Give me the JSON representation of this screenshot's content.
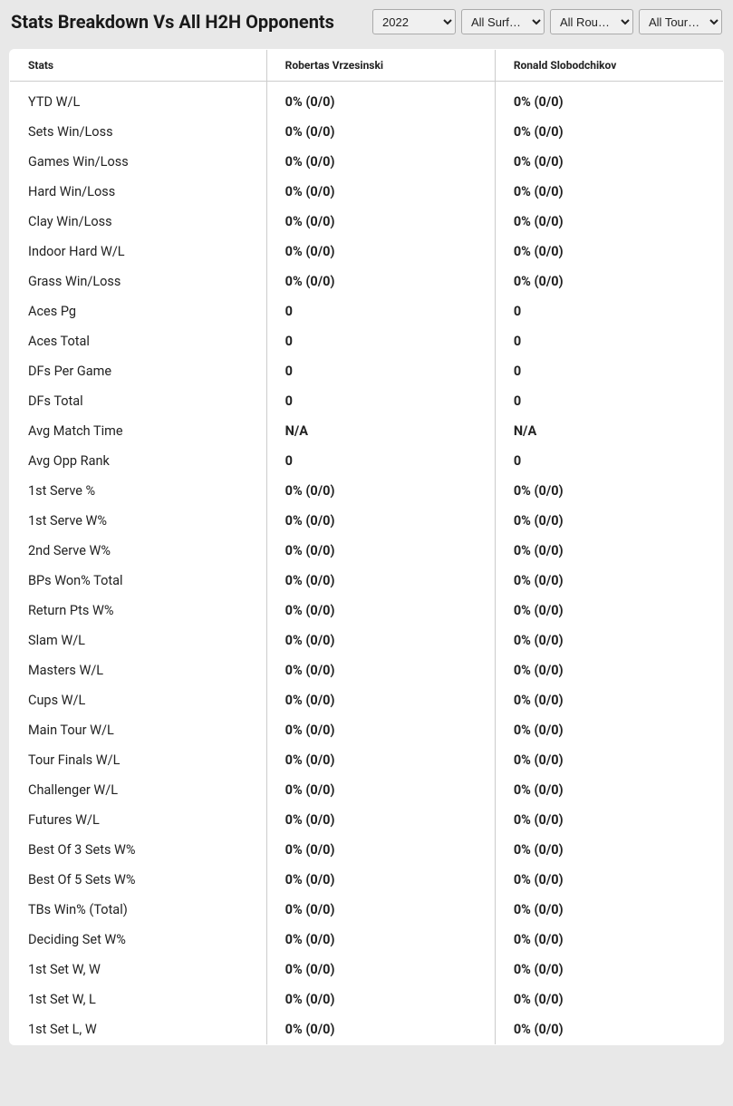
{
  "header": {
    "title": "Stats Breakdown Vs All H2H Opponents",
    "filters": {
      "year": "2022",
      "surface": "All Surf…",
      "round": "All Rou…",
      "tour": "All Tour…"
    }
  },
  "table": {
    "columns": [
      "Stats",
      "Robertas Vrzesinski",
      "Ronald Slobodchikov"
    ],
    "rows": [
      {
        "stat": "YTD W/L",
        "p1": "0% (0/0)",
        "p2": "0% (0/0)"
      },
      {
        "stat": "Sets Win/Loss",
        "p1": "0% (0/0)",
        "p2": "0% (0/0)"
      },
      {
        "stat": "Games Win/Loss",
        "p1": "0% (0/0)",
        "p2": "0% (0/0)"
      },
      {
        "stat": "Hard Win/Loss",
        "p1": "0% (0/0)",
        "p2": "0% (0/0)"
      },
      {
        "stat": "Clay Win/Loss",
        "p1": "0% (0/0)",
        "p2": "0% (0/0)"
      },
      {
        "stat": "Indoor Hard W/L",
        "p1": "0% (0/0)",
        "p2": "0% (0/0)"
      },
      {
        "stat": "Grass Win/Loss",
        "p1": "0% (0/0)",
        "p2": "0% (0/0)"
      },
      {
        "stat": "Aces Pg",
        "p1": "0",
        "p2": "0"
      },
      {
        "stat": "Aces Total",
        "p1": "0",
        "p2": "0"
      },
      {
        "stat": "DFs Per Game",
        "p1": "0",
        "p2": "0"
      },
      {
        "stat": "DFs Total",
        "p1": "0",
        "p2": "0"
      },
      {
        "stat": "Avg Match Time",
        "p1": "N/A",
        "p2": "N/A"
      },
      {
        "stat": "Avg Opp Rank",
        "p1": "0",
        "p2": "0"
      },
      {
        "stat": "1st Serve %",
        "p1": "0% (0/0)",
        "p2": "0% (0/0)"
      },
      {
        "stat": "1st Serve W%",
        "p1": "0% (0/0)",
        "p2": "0% (0/0)"
      },
      {
        "stat": "2nd Serve W%",
        "p1": "0% (0/0)",
        "p2": "0% (0/0)"
      },
      {
        "stat": "BPs Won% Total",
        "p1": "0% (0/0)",
        "p2": "0% (0/0)"
      },
      {
        "stat": "Return Pts W%",
        "p1": "0% (0/0)",
        "p2": "0% (0/0)"
      },
      {
        "stat": "Slam W/L",
        "p1": "0% (0/0)",
        "p2": "0% (0/0)"
      },
      {
        "stat": "Masters W/L",
        "p1": "0% (0/0)",
        "p2": "0% (0/0)"
      },
      {
        "stat": "Cups W/L",
        "p1": "0% (0/0)",
        "p2": "0% (0/0)"
      },
      {
        "stat": "Main Tour W/L",
        "p1": "0% (0/0)",
        "p2": "0% (0/0)"
      },
      {
        "stat": "Tour Finals W/L",
        "p1": "0% (0/0)",
        "p2": "0% (0/0)"
      },
      {
        "stat": "Challenger W/L",
        "p1": "0% (0/0)",
        "p2": "0% (0/0)"
      },
      {
        "stat": "Futures W/L",
        "p1": "0% (0/0)",
        "p2": "0% (0/0)"
      },
      {
        "stat": "Best Of 3 Sets W%",
        "p1": "0% (0/0)",
        "p2": "0% (0/0)"
      },
      {
        "stat": "Best Of 5 Sets W%",
        "p1": "0% (0/0)",
        "p2": "0% (0/0)"
      },
      {
        "stat": "TBs Win% (Total)",
        "p1": "0% (0/0)",
        "p2": "0% (0/0)"
      },
      {
        "stat": "Deciding Set W%",
        "p1": "0% (0/0)",
        "p2": "0% (0/0)"
      },
      {
        "stat": "1st Set W, W",
        "p1": "0% (0/0)",
        "p2": "0% (0/0)"
      },
      {
        "stat": "1st Set W, L",
        "p1": "0% (0/0)",
        "p2": "0% (0/0)"
      },
      {
        "stat": "1st Set L, W",
        "p1": "0% (0/0)",
        "p2": "0% (0/0)"
      }
    ]
  },
  "styling": {
    "background_color": "#e8e8e8",
    "table_background": "#ffffff",
    "border_color": "#cccccc",
    "text_color": "#222222",
    "title_fontsize": 20,
    "header_fontsize": 12,
    "cell_fontsize": 14.5
  }
}
